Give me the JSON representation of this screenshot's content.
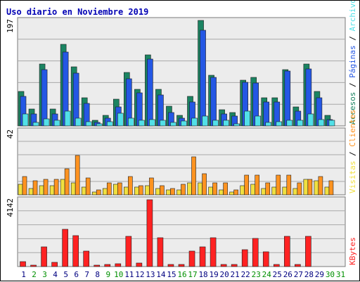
{
  "chart_data": {
    "type": "bar",
    "title": "Uso diario en Noviembre 2019",
    "categories": [
      "1",
      "2",
      "3",
      "4",
      "5",
      "6",
      "7",
      "8",
      "9",
      "10",
      "11",
      "12",
      "13",
      "14",
      "15",
      "16",
      "17",
      "18",
      "19",
      "20",
      "21",
      "22",
      "23",
      "24",
      "25",
      "26",
      "27",
      "28",
      "29",
      "30",
      "31"
    ],
    "weekend_days": [
      "2",
      "3",
      "9",
      "10",
      "16",
      "17",
      "23",
      "24",
      "30",
      "31"
    ],
    "weekday_color": "#000080",
    "weekend_color": "#009000",
    "panels": [
      {
        "id": "hits",
        "max_label": "197",
        "ylim": [
          0,
          197
        ],
        "series": [
          {
            "name": "Accesos",
            "color": "#1b8462",
            "values": [
              65,
              32,
              115,
              32,
              152,
              110,
              52,
              10,
              20,
              50,
              100,
              68,
              133,
              68,
              37,
              20,
              55,
              197,
              95,
              30,
              25,
              85,
              90,
              52,
              52,
              105,
              35,
              115,
              65,
              20,
              0
            ]
          },
          {
            "name": "Páginas",
            "color": "#2457e4",
            "values": [
              55,
              22,
              105,
              22,
              138,
              98,
              42,
              6,
              14,
              36,
              88,
              62,
              125,
              58,
              25,
              14,
              45,
              178,
              90,
              22,
              18,
              82,
              80,
              44,
              44,
              102,
              28,
              106,
              52,
              12,
              0
            ]
          },
          {
            "name": "Archivos",
            "color": "#52e0e8",
            "values": [
              22,
              7,
              13,
              11,
              28,
              15,
              8,
              4,
              8,
              23,
              14,
              10,
              12,
              11,
              7,
              9,
              14,
              19,
              11,
              10,
              4,
              27,
              19,
              6,
              8,
              11,
              10,
              22,
              12,
              10,
              0
            ]
          }
        ]
      },
      {
        "id": "visits",
        "max_label": "42",
        "ylim": [
          0,
          42
        ],
        "series": [
          {
            "name": "Visitas",
            "color": "#f0e040",
            "values": [
              7,
              4,
              6,
              6,
              10,
              8,
              5,
              2,
              4,
              7,
              5,
              5,
              6,
              4,
              3,
              3,
              8,
              8,
              5,
              3,
              2,
              6,
              7,
              4,
              5,
              5,
              4,
              10,
              9,
              5,
              0
            ]
          },
          {
            "name": "Clientes",
            "color": "#ff9320",
            "values": [
              12,
              9,
              10,
              10,
              17,
              26,
              11,
              3,
              8,
              8,
              12,
              6,
              11,
              6,
              4,
              7,
              25,
              14,
              8,
              8,
              3,
              13,
              13,
              8,
              13,
              13,
              8,
              10,
              12,
              9,
              0
            ]
          }
        ]
      },
      {
        "id": "kbytes",
        "max_label": "4142",
        "ylim": [
          0,
          4142
        ],
        "series": [
          {
            "name": "KBytes",
            "color": "#ff2222",
            "values": [
              300,
              80,
              1200,
              250,
              2300,
              1900,
              950,
              80,
              150,
              180,
              1870,
              210,
              4142,
              1770,
              110,
              150,
              950,
              1200,
              1800,
              110,
              120,
              1030,
              1760,
              900,
              130,
              1870,
              110,
              1870,
              0,
              0,
              0
            ]
          }
        ]
      }
    ]
  }
}
